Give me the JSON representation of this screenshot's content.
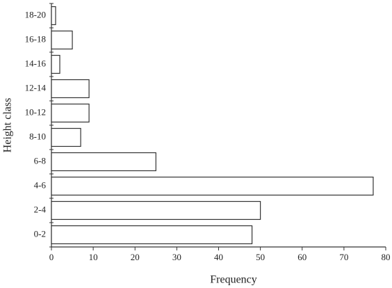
{
  "chart_data": {
    "type": "bar",
    "orientation": "horizontal",
    "x_label": "Frequency",
    "y_label": "Height class",
    "categories": [
      "0-2",
      "2-4",
      "4-6",
      "6-8",
      "8-10",
      "10-12",
      "12-14",
      "14-16",
      "16-18",
      "18-20"
    ],
    "values": [
      48,
      50,
      77,
      25,
      7,
      9,
      9,
      2,
      5,
      1
    ],
    "color": "#ffffff",
    "edge_color": "#333333",
    "xlim": [
      0,
      80
    ],
    "xticks": [
      0,
      10,
      20,
      30,
      40,
      50,
      60,
      70,
      80
    ],
    "grid": false
  }
}
